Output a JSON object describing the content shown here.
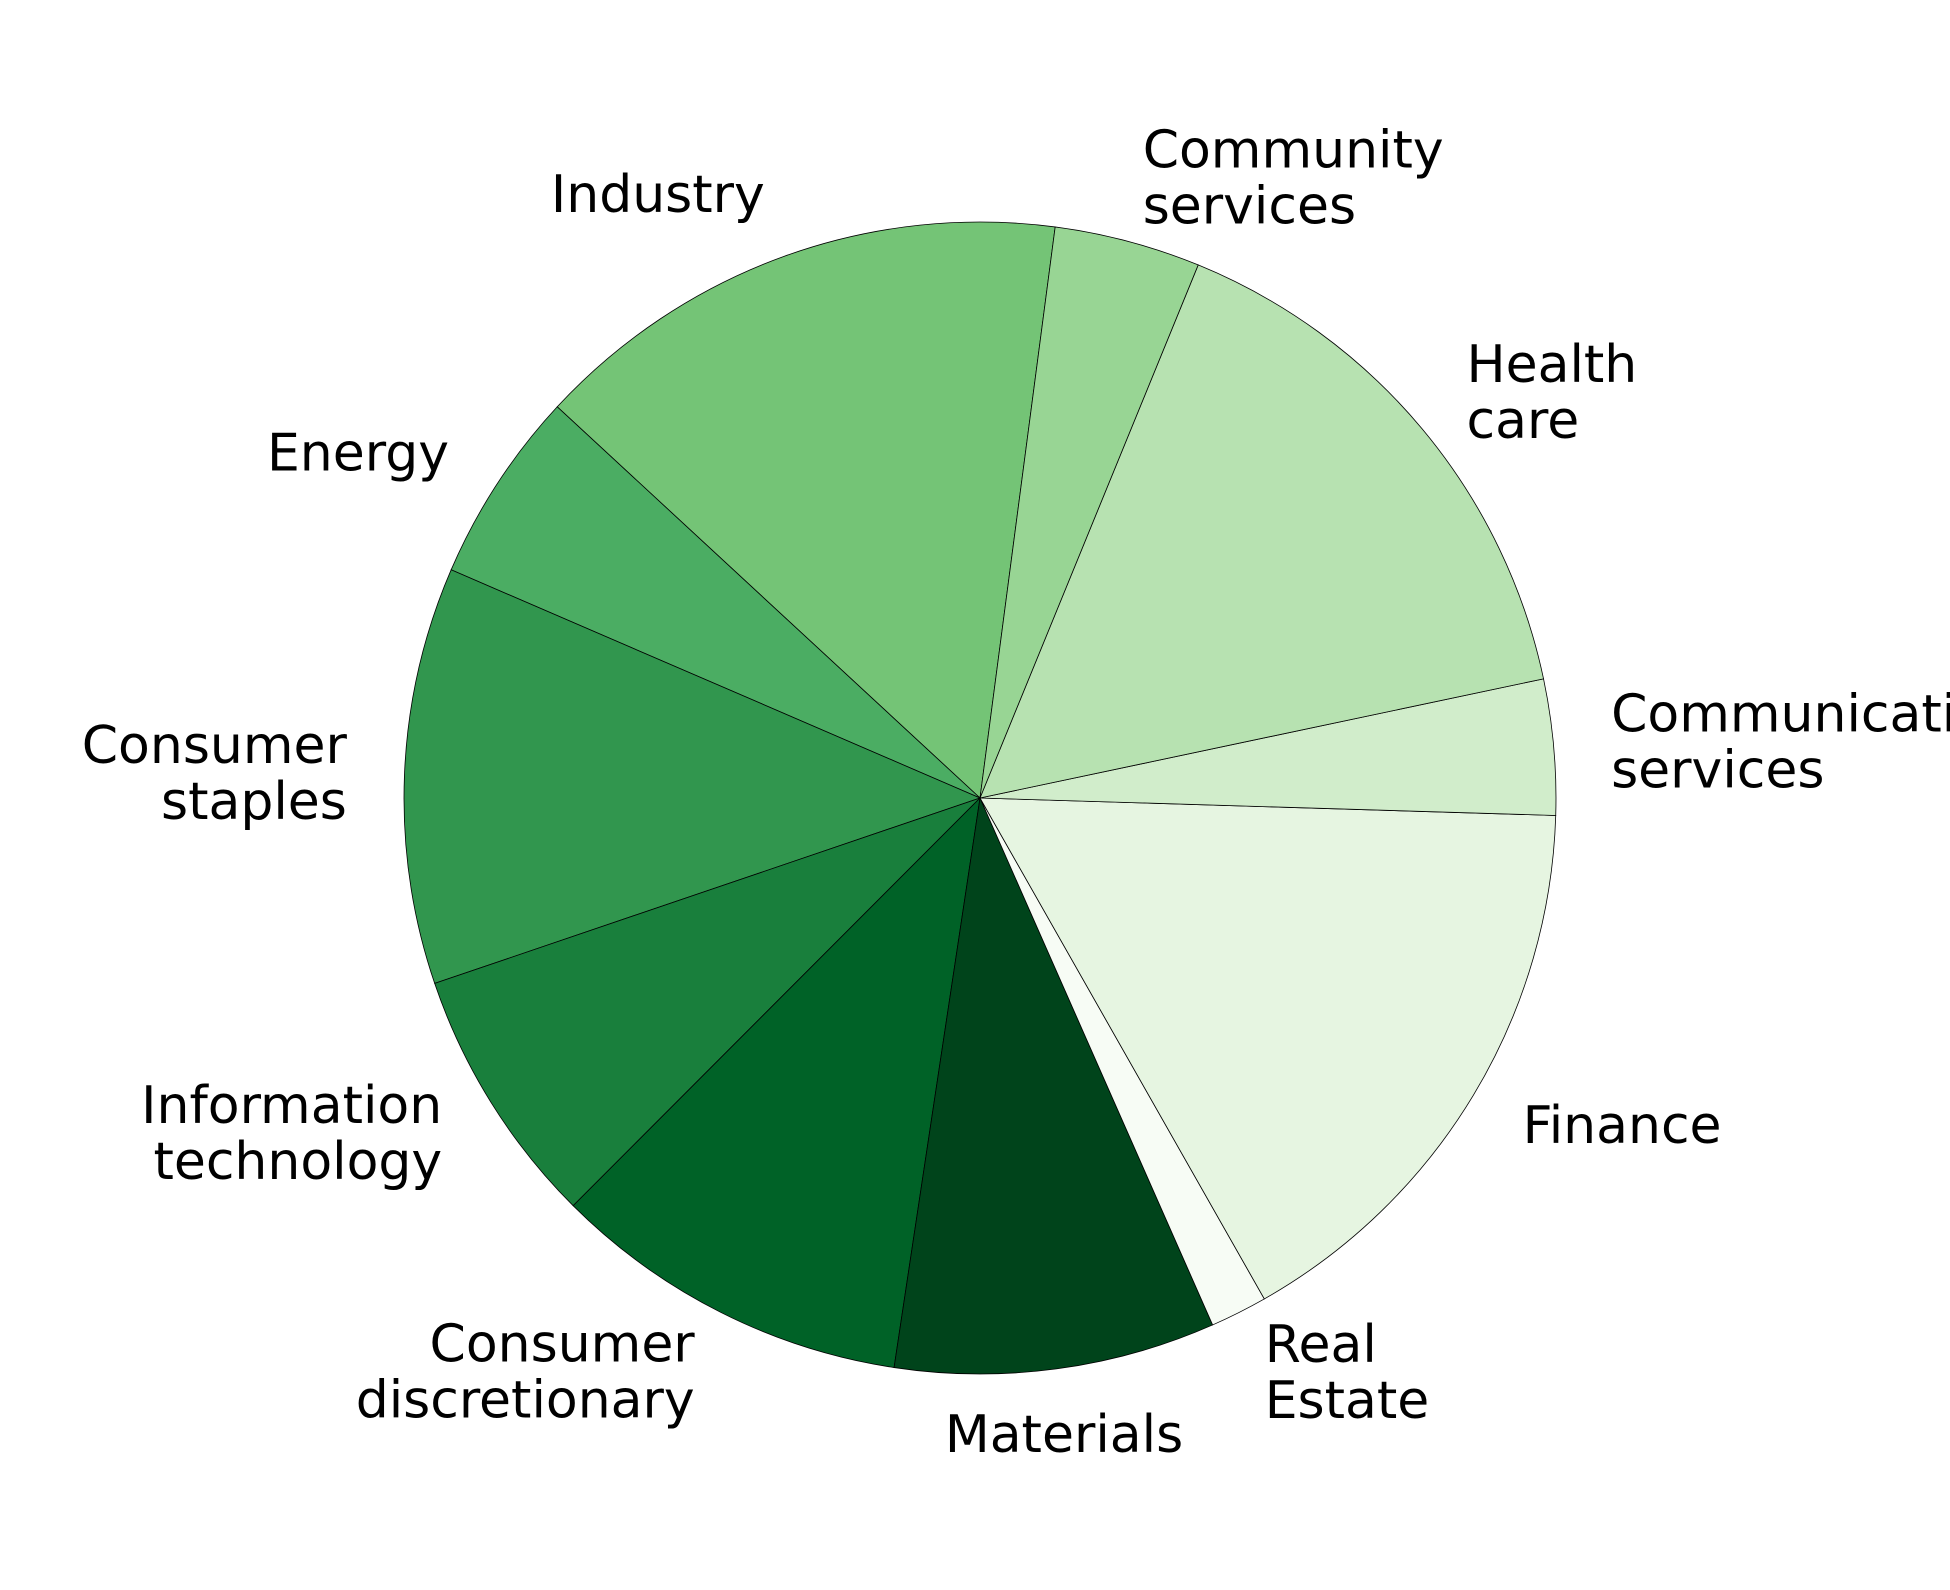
{
  "chart_data": {
    "type": "pie",
    "title": "",
    "slices": [
      {
        "label": "Industry",
        "lines": [
          "Industry"
        ],
        "value": 15.2,
        "color": "#74c476"
      },
      {
        "label": "Energy",
        "lines": [
          "Energy"
        ],
        "value": 5.4,
        "color": "#4bad63"
      },
      {
        "label": "Consumer staples",
        "lines": [
          "Consumer",
          "staples"
        ],
        "value": 11.7,
        "color": "#31964e"
      },
      {
        "label": "Information technology",
        "lines": [
          "Information",
          "technology"
        ],
        "value": 7.3,
        "color": "#197f3c"
      },
      {
        "label": "Consumer discretionary",
        "lines": [
          "Consumer",
          "discretionary"
        ],
        "value": 10.1,
        "color": "#006227"
      },
      {
        "label": "Materials",
        "lines": [
          "Materials"
        ],
        "value": 9.0,
        "color": "#00441b"
      },
      {
        "label": "Real Estate",
        "lines": [
          "Real",
          "Estate"
        ],
        "value": 1.6,
        "color": "#f7fcf5"
      },
      {
        "label": "Finance",
        "lines": [
          "Finance"
        ],
        "value": 16.3,
        "color": "#e6f5e1"
      },
      {
        "label": "Communication services",
        "lines": [
          "Communication",
          "services"
        ],
        "value": 3.8,
        "color": "#d1edcb"
      },
      {
        "label": "Health care",
        "lines": [
          "Health",
          "care"
        ],
        "value": 15.5,
        "color": "#b7e2b1"
      },
      {
        "label": "Community services",
        "lines": [
          "Community",
          "services"
        ],
        "value": 4.1,
        "color": "#98d594"
      }
    ],
    "start_angle_deg": 82.5,
    "direction": "counterclockwise",
    "legend": "none"
  }
}
